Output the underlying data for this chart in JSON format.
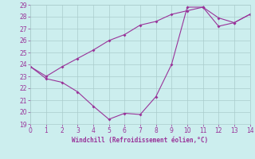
{
  "line1_x": [
    0,
    1,
    2,
    3,
    4,
    5,
    6,
    7,
    8,
    9,
    10,
    11,
    12,
    13,
    14
  ],
  "line1_y": [
    23.8,
    22.8,
    22.5,
    21.7,
    20.5,
    19.4,
    19.9,
    19.8,
    21.3,
    24.0,
    28.8,
    28.8,
    27.9,
    27.5,
    28.2
  ],
  "line2_x": [
    0,
    1,
    2,
    3,
    4,
    5,
    6,
    7,
    8,
    9,
    10,
    11,
    12,
    13,
    14
  ],
  "line2_y": [
    23.8,
    23.0,
    23.8,
    24.5,
    25.2,
    26.0,
    26.5,
    27.3,
    27.6,
    28.2,
    28.5,
    28.8,
    27.2,
    27.5,
    28.2
  ],
  "line_color": "#993399",
  "bg_color": "#cceeee",
  "grid_color": "#aacccc",
  "xlabel": "Windchill (Refroidissement éolien,°C)",
  "ylim": [
    19,
    29
  ],
  "xlim": [
    0,
    14
  ],
  "yticks": [
    19,
    20,
    21,
    22,
    23,
    24,
    25,
    26,
    27,
    28,
    29
  ],
  "xticks": [
    0,
    1,
    2,
    3,
    4,
    5,
    6,
    7,
    8,
    9,
    10,
    11,
    12,
    13,
    14
  ]
}
